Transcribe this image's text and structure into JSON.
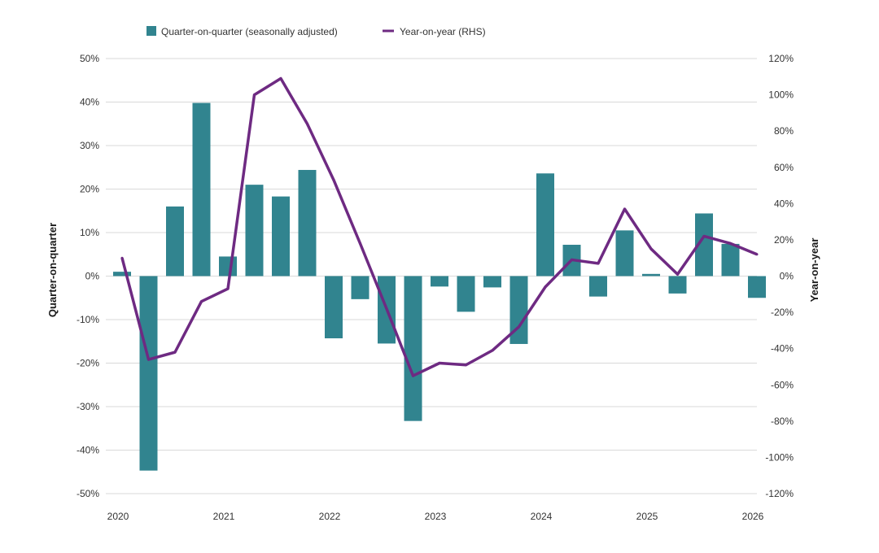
{
  "chart_data": {
    "type": "bar",
    "title": "",
    "x_tick_labels": [
      "2020",
      "2021",
      "2022",
      "2023",
      "2024",
      "2025",
      "2026"
    ],
    "y_left": {
      "label": "Quarter-on-quarter",
      "range": [
        -50,
        50
      ],
      "ticks": [
        "-50%",
        "-40%",
        "-30%",
        "-20%",
        "-10%",
        "0%",
        "10%",
        "20%",
        "30%",
        "40%",
        "50%"
      ]
    },
    "y_right": {
      "label": "Year-on-year",
      "range": [
        -120,
        120
      ],
      "ticks": [
        "-120%",
        "-100%",
        "-80%",
        "-60%",
        "-40%",
        "-20%",
        "0%",
        "20%",
        "40%",
        "60%",
        "80%",
        "100%",
        "120%"
      ]
    },
    "grid": true,
    "legend_position": "top",
    "series": [
      {
        "name": "Quarter-on-quarter (seasonally adjusted)",
        "type": "bar",
        "axis": "left",
        "color": "#31848f",
        "x": [
          "2020-Q1",
          "2020-Q2",
          "2020-Q3",
          "2020-Q4",
          "2021-Q1",
          "2021-Q2",
          "2021-Q3",
          "2021-Q4",
          "2022-Q1",
          "2022-Q2",
          "2022-Q3",
          "2022-Q4",
          "2023-Q1",
          "2023-Q2",
          "2023-Q3",
          "2023-Q4",
          "2024-Q1",
          "2024-Q2",
          "2024-Q3",
          "2024-Q4",
          "2025-Q1",
          "2025-Q2",
          "2025-Q3",
          "2025-Q4",
          "2026-Q1"
        ],
        "values": [
          1.0,
          -44.7,
          16.0,
          39.8,
          4.5,
          21.0,
          18.3,
          24.4,
          -14.3,
          -5.3,
          -15.5,
          -33.3,
          -2.4,
          -8.2,
          -2.6,
          -15.6,
          23.6,
          7.2,
          -4.7,
          10.5,
          0.5,
          -4.0,
          14.4,
          7.4,
          -5.0
        ]
      },
      {
        "name": "Year-on-year (RHS)",
        "type": "line",
        "axis": "right",
        "color": "#6e2a82",
        "x": [
          "2020-Q1",
          "2020-Q2",
          "2020-Q3",
          "2020-Q4",
          "2021-Q1",
          "2021-Q2",
          "2021-Q3",
          "2021-Q4",
          "2022-Q1",
          "2022-Q2",
          "2022-Q3",
          "2022-Q4",
          "2023-Q1",
          "2023-Q2",
          "2023-Q3",
          "2023-Q4",
          "2024-Q1",
          "2024-Q2",
          "2024-Q3",
          "2024-Q4",
          "2025-Q1",
          "2025-Q2",
          "2025-Q3",
          "2025-Q4",
          "2026-Q1"
        ],
        "values": [
          10,
          -46,
          -42,
          -14,
          -7,
          100,
          109,
          84,
          53,
          18,
          -18,
          -55,
          -48,
          -49,
          -41,
          -28,
          -6,
          9,
          7,
          37,
          15,
          1,
          22,
          18,
          12
        ]
      }
    ]
  }
}
